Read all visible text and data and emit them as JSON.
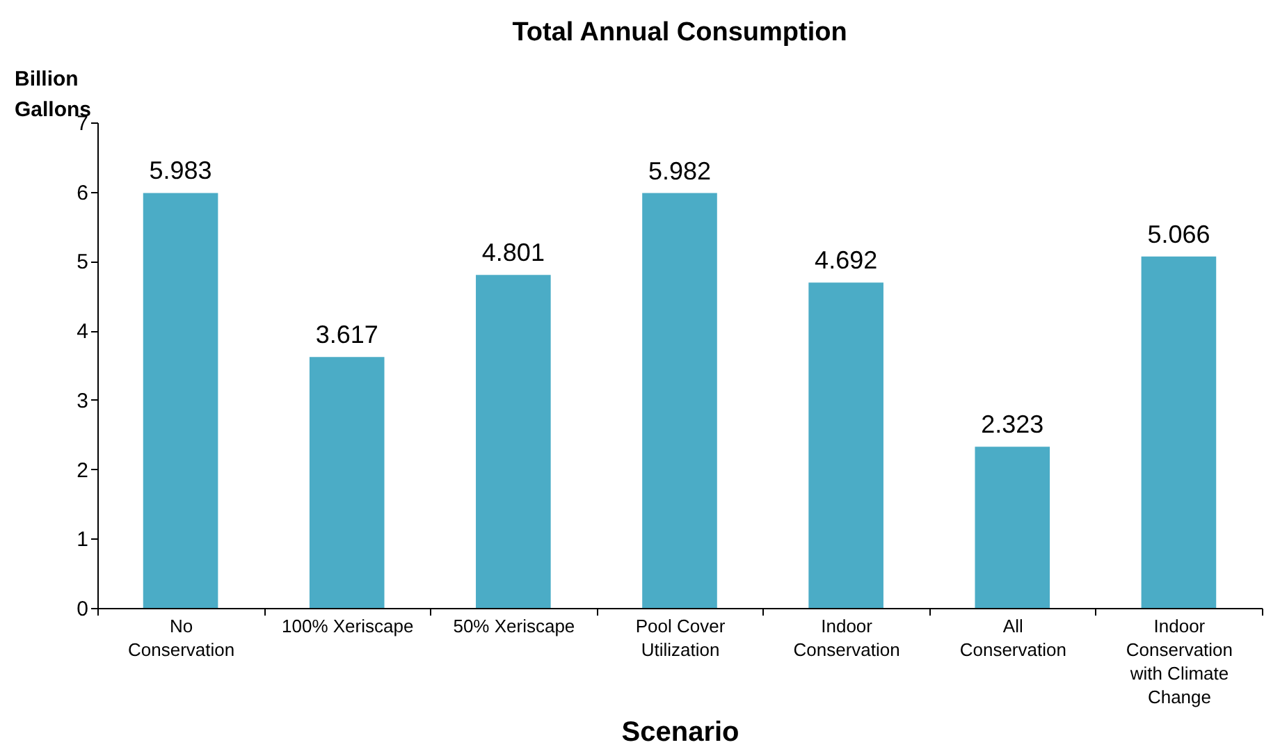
{
  "chart_data": {
    "type": "bar",
    "title": "Total Annual Consumption",
    "xlabel": "Scenario",
    "ylabel": "Billion Gallons",
    "categories": [
      "No Conservation",
      "100% Xeriscape",
      "50% Xeriscape",
      "Pool Cover Utilization",
      "Indoor Conservation",
      "All Conservation",
      "Indoor Conservation with Climate Change"
    ],
    "values": [
      5.983,
      3.617,
      4.801,
      5.982,
      4.692,
      2.323,
      5.066
    ],
    "color": "#4bacc6",
    "ylim": [
      0,
      7
    ],
    "yticks": [
      0,
      1,
      2,
      3,
      4,
      5,
      6,
      7
    ],
    "grid": false,
    "data_labels": true
  }
}
